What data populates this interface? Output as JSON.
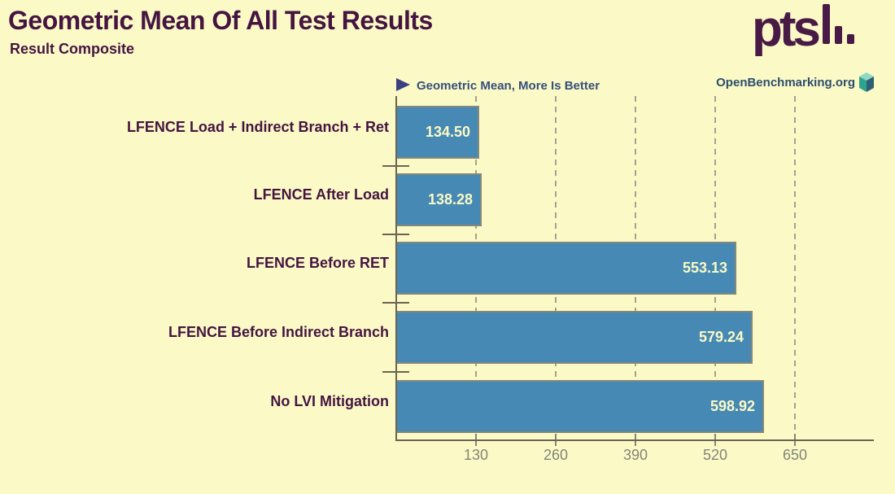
{
  "header": {
    "title": "Geometric Mean Of All Test Results",
    "subtitle": "Result Composite",
    "logo_text": "pts"
  },
  "legend": {
    "better_label": "Geometric Mean, More Is Better",
    "site_label": "OpenBenchmarking.org"
  },
  "chart_data": {
    "type": "bar",
    "orientation": "horizontal",
    "title": "Geometric Mean Of All Test Results",
    "subtitle": "Result Composite",
    "unit": "Geometric Mean",
    "better": "More Is Better",
    "categories": [
      "LFENCE Load + Indirect Branch + Ret",
      "LFENCE After Load",
      "LFENCE Before RET",
      "LFENCE Before Indirect Branch",
      "No LVI Mitigation"
    ],
    "values": [
      134.5,
      138.28,
      553.13,
      579.24,
      598.92
    ],
    "value_labels": [
      "134.50",
      "138.28",
      "553.13",
      "579.24",
      "598.92"
    ],
    "xticks": [
      130,
      260,
      390,
      520,
      650
    ],
    "xtick_labels": [
      "130",
      "260",
      "390",
      "520",
      "650"
    ],
    "xlim": [
      0,
      780
    ],
    "grid": "dashed-vertical",
    "legend_position": "top-left"
  },
  "colors": {
    "background": "#FBFAC6",
    "bar_fill": "#4689B4",
    "bar_border": "#84887A",
    "title_text": "#451441",
    "category_text": "#451441",
    "value_text": "#FBFAC6",
    "legend_text": "#374F7C",
    "arrow": "#3A4180",
    "site_text": "#2E4D6D",
    "axis": "#6C6452",
    "tick": "#8A8577",
    "tick_text": "#83837A",
    "gridline": "#A3A294",
    "logo": "#4A1A46",
    "cube_top": "#8FD8C3",
    "cube_left": "#2FA38E",
    "cube_right": "#2E5F74"
  }
}
